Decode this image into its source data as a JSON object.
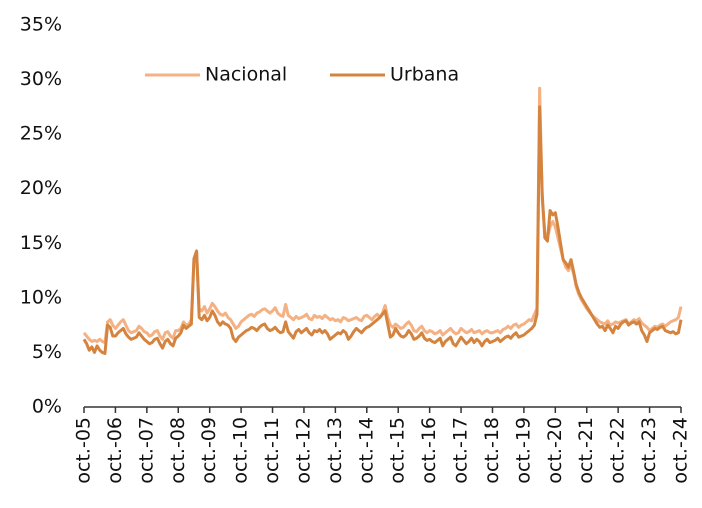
{
  "chart_data": {
    "type": "line",
    "categories": [
      "oct.-05",
      null,
      null,
      null,
      null,
      null,
      null,
      null,
      null,
      null,
      null,
      null,
      "oct.-06",
      null,
      null,
      null,
      null,
      null,
      null,
      null,
      null,
      null,
      null,
      null,
      "oct.-07",
      null,
      null,
      null,
      null,
      null,
      null,
      null,
      null,
      null,
      null,
      null,
      "oct.-08",
      null,
      null,
      null,
      null,
      null,
      null,
      null,
      null,
      null,
      null,
      null,
      "oct.-09",
      null,
      null,
      null,
      null,
      null,
      null,
      null,
      null,
      null,
      null,
      null,
      "oct.-10",
      null,
      null,
      null,
      null,
      null,
      null,
      null,
      null,
      null,
      null,
      null,
      "oct.-11",
      null,
      null,
      null,
      null,
      null,
      null,
      null,
      null,
      null,
      null,
      null,
      "oct.-12",
      null,
      null,
      null,
      null,
      null,
      null,
      null,
      null,
      null,
      null,
      null,
      "oct.-13",
      null,
      null,
      null,
      null,
      null,
      null,
      null,
      null,
      null,
      null,
      null,
      "oct.-14",
      null,
      null,
      null,
      null,
      null,
      null,
      null,
      null,
      null,
      null,
      null,
      "oct.-15",
      null,
      null,
      null,
      null,
      null,
      null,
      null,
      null,
      null,
      null,
      null,
      "oct.-16",
      null,
      null,
      null,
      null,
      null,
      null,
      null,
      null,
      null,
      null,
      null,
      "oct.-17",
      null,
      null,
      null,
      null,
      null,
      null,
      null,
      null,
      null,
      null,
      null,
      "oct.-18",
      null,
      null,
      null,
      null,
      null,
      null,
      null,
      null,
      null,
      null,
      null,
      "oct.-19",
      null,
      null,
      null,
      null,
      null,
      null,
      null,
      null,
      null,
      null,
      null,
      "oct.-20",
      null,
      null,
      null,
      null,
      null,
      null,
      null,
      null,
      null,
      null,
      null,
      "oct.-21",
      null,
      null,
      null,
      null,
      null,
      null,
      null,
      null,
      null,
      null,
      null,
      "oct.-22",
      null,
      null,
      null,
      null,
      null,
      null,
      null,
      null,
      null,
      null,
      null,
      "oct.-23",
      null,
      null,
      null,
      null,
      null,
      null,
      null,
      null,
      null,
      null,
      null,
      "oct.-24"
    ],
    "series": [
      {
        "name": "Nacional",
        "color": "#f4b183",
        "values": [
          6.8,
          6.5,
          6.2,
          6.0,
          6.1,
          6.0,
          6.2,
          6.0,
          5.9,
          7.8,
          8.0,
          7.5,
          7.2,
          7.5,
          7.8,
          8.0,
          7.5,
          7.0,
          6.8,
          6.9,
          7.0,
          7.4,
          7.2,
          6.9,
          6.8,
          6.5,
          6.6,
          6.9,
          7.0,
          6.5,
          6.2,
          6.8,
          6.9,
          6.5,
          6.3,
          7.0,
          7.0,
          7.2,
          7.8,
          7.5,
          7.6,
          8.0,
          13.5,
          14.2,
          9.0,
          8.8,
          9.2,
          8.6,
          9.0,
          9.5,
          9.2,
          8.8,
          8.5,
          8.4,
          8.6,
          8.2,
          8.0,
          7.6,
          7.2,
          7.4,
          7.8,
          8.0,
          8.2,
          8.4,
          8.5,
          8.3,
          8.6,
          8.7,
          8.9,
          9.0,
          8.8,
          8.6,
          8.8,
          9.1,
          8.6,
          8.4,
          8.3,
          9.4,
          8.4,
          8.2,
          8.0,
          8.3,
          8.1,
          8.2,
          8.3,
          8.5,
          8.1,
          8.0,
          8.4,
          8.2,
          8.3,
          8.1,
          8.4,
          8.2,
          8.0,
          8.1,
          7.9,
          8.0,
          7.8,
          8.2,
          8.1,
          7.9,
          8.0,
          8.1,
          8.2,
          8.0,
          7.9,
          8.3,
          8.4,
          8.2,
          8.0,
          8.3,
          8.5,
          8.2,
          8.6,
          9.3,
          8.2,
          7.5,
          7.3,
          7.6,
          7.4,
          7.2,
          7.3,
          7.6,
          7.8,
          7.5,
          7.0,
          6.9,
          7.2,
          7.4,
          7.0,
          6.8,
          7.0,
          6.9,
          6.7,
          6.8,
          7.0,
          6.6,
          6.8,
          7.0,
          7.2,
          6.9,
          6.7,
          6.8,
          7.2,
          7.0,
          6.8,
          6.9,
          7.1,
          6.8,
          6.9,
          7.0,
          6.7,
          6.9,
          7.0,
          6.8,
          6.8,
          6.9,
          7.0,
          6.8,
          7.1,
          7.2,
          7.4,
          7.2,
          7.5,
          7.6,
          7.3,
          7.5,
          7.6,
          7.8,
          8.0,
          7.9,
          8.5,
          9.0,
          29.2,
          19.0,
          16.0,
          15.5,
          16.5,
          17.0,
          16.5,
          15.5,
          14.5,
          13.5,
          12.8,
          12.5,
          13.0,
          12.2,
          11.0,
          10.3,
          9.8,
          9.4,
          9.0,
          8.7,
          8.4,
          8.2,
          8.0,
          7.8,
          7.7,
          7.6,
          7.9,
          7.5,
          7.6,
          7.8,
          7.7,
          7.8,
          7.9,
          8.0,
          7.6,
          7.8,
          8.0,
          7.9,
          8.1,
          7.7,
          7.5,
          7.3,
          7.0,
          7.2,
          7.4,
          7.3,
          7.5,
          7.6,
          7.4,
          7.6,
          7.8,
          7.9,
          8.0,
          8.2,
          9.2
        ]
      },
      {
        "name": "Urbana",
        "color": "#d4843e",
        "values": [
          6.2,
          5.8,
          5.2,
          5.5,
          5.0,
          5.6,
          5.2,
          5.0,
          4.9,
          7.5,
          7.3,
          6.5,
          6.5,
          6.8,
          7.0,
          7.2,
          6.7,
          6.4,
          6.2,
          6.3,
          6.4,
          6.8,
          6.5,
          6.2,
          6.0,
          5.8,
          5.9,
          6.2,
          6.3,
          5.8,
          5.4,
          6.0,
          6.2,
          5.8,
          5.6,
          6.3,
          6.5,
          6.8,
          7.5,
          7.2,
          7.4,
          7.6,
          13.6,
          14.3,
          8.2,
          8.0,
          8.4,
          7.9,
          8.2,
          8.8,
          8.4,
          7.8,
          7.5,
          7.8,
          7.6,
          7.5,
          7.2,
          6.3,
          6.0,
          6.4,
          6.6,
          6.8,
          7.0,
          7.1,
          7.3,
          7.2,
          7.0,
          7.3,
          7.5,
          7.6,
          7.2,
          7.0,
          7.1,
          7.3,
          7.0,
          6.8,
          6.9,
          7.8,
          6.9,
          6.6,
          6.3,
          6.9,
          7.1,
          6.8,
          7.0,
          7.2,
          6.8,
          6.6,
          7.0,
          6.9,
          7.1,
          6.8,
          7.0,
          6.7,
          6.2,
          6.4,
          6.6,
          6.8,
          6.7,
          7.0,
          6.8,
          6.2,
          6.5,
          6.9,
          7.2,
          7.0,
          6.8,
          7.1,
          7.3,
          7.4,
          7.6,
          7.8,
          8.0,
          8.2,
          8.5,
          8.8,
          7.6,
          6.4,
          6.6,
          7.2,
          6.8,
          6.5,
          6.4,
          6.6,
          7.0,
          6.7,
          6.2,
          6.3,
          6.5,
          6.8,
          6.3,
          6.1,
          6.2,
          6.0,
          5.9,
          6.1,
          6.3,
          5.6,
          6.0,
          6.2,
          6.4,
          5.8,
          5.6,
          6.0,
          6.4,
          6.1,
          5.8,
          6.0,
          6.3,
          5.9,
          6.2,
          6.0,
          5.6,
          6.0,
          6.2,
          5.9,
          6.0,
          6.1,
          6.3,
          6.0,
          6.2,
          6.4,
          6.5,
          6.3,
          6.6,
          6.8,
          6.4,
          6.5,
          6.6,
          6.8,
          7.0,
          7.2,
          7.5,
          8.5,
          27.5,
          19.5,
          15.5,
          15.2,
          18.0,
          17.6,
          17.8,
          16.5,
          15.0,
          13.5,
          13.2,
          12.8,
          13.5,
          12.4,
          11.2,
          10.5,
          10.0,
          9.6,
          9.2,
          8.8,
          8.4,
          8.0,
          7.6,
          7.3,
          7.4,
          7.0,
          7.5,
          7.2,
          6.8,
          7.4,
          7.2,
          7.6,
          7.8,
          7.9,
          7.5,
          7.7,
          7.8,
          7.6,
          7.8,
          7.0,
          6.6,
          6.0,
          6.8,
          7.0,
          7.2,
          7.1,
          7.3,
          7.4,
          7.0,
          6.9,
          6.8,
          6.9,
          6.7,
          6.8,
          8.0
        ]
      }
    ],
    "ylim": [
      0,
      35
    ],
    "yticks": [
      {
        "value": 0,
        "label": "0%"
      },
      {
        "value": 5,
        "label": "5%"
      },
      {
        "value": 10,
        "label": "10%"
      },
      {
        "value": 15,
        "label": "15%"
      },
      {
        "value": 20,
        "label": "20%"
      },
      {
        "value": 25,
        "label": "25%"
      },
      {
        "value": 30,
        "label": "30%"
      },
      {
        "value": 35,
        "label": "35%"
      }
    ],
    "grid": false,
    "legend": "top"
  }
}
